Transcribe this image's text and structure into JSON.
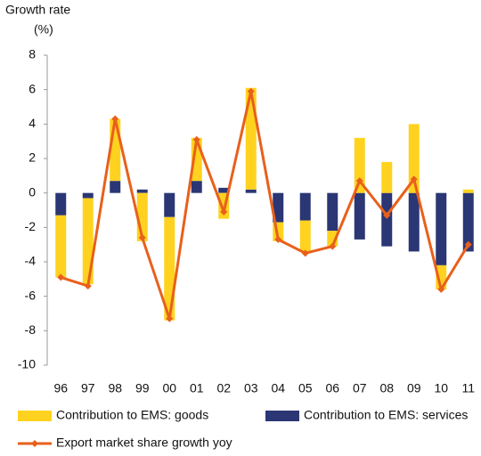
{
  "chart_data": {
    "type": "bar",
    "stacked": true,
    "ylabel": [
      "Growth rate",
      "(%)"
    ],
    "categories": [
      "96",
      "97",
      "98",
      "99",
      "00",
      "01",
      "02",
      "03",
      "04",
      "05",
      "06",
      "07",
      "08",
      "09",
      "10",
      "11"
    ],
    "series": [
      {
        "name": "Contribution to EMS: goods",
        "type": "bar",
        "color": "#ffd21f",
        "values": [
          -3.6,
          -5.0,
          3.6,
          -2.8,
          -6.0,
          2.5,
          -1.5,
          5.9,
          -1.1,
          -1.8,
          -0.9,
          3.2,
          1.8,
          4.0,
          -1.4,
          0.2
        ]
      },
      {
        "name": "Contribution to EMS: services",
        "type": "bar",
        "color": "#2b3674",
        "values": [
          -1.3,
          -0.3,
          0.7,
          0.2,
          -1.4,
          0.7,
          0.3,
          0.2,
          -1.7,
          -1.6,
          -2.2,
          -2.7,
          -3.1,
          -3.4,
          -4.2,
          -3.4
        ]
      },
      {
        "name": "Export market share growth yoy",
        "type": "line",
        "color": "#e8601c",
        "values": [
          -4.9,
          -5.4,
          4.3,
          -2.6,
          -7.3,
          3.1,
          -1.1,
          5.9,
          -2.7,
          -3.5,
          -3.1,
          0.7,
          -1.3,
          0.8,
          -5.6,
          -3.0
        ]
      }
    ],
    "ylim": [
      -10,
      8
    ],
    "yticks": [
      -10,
      -8,
      -6,
      -4,
      -2,
      0,
      2,
      4,
      6,
      8
    ],
    "grid": false
  }
}
